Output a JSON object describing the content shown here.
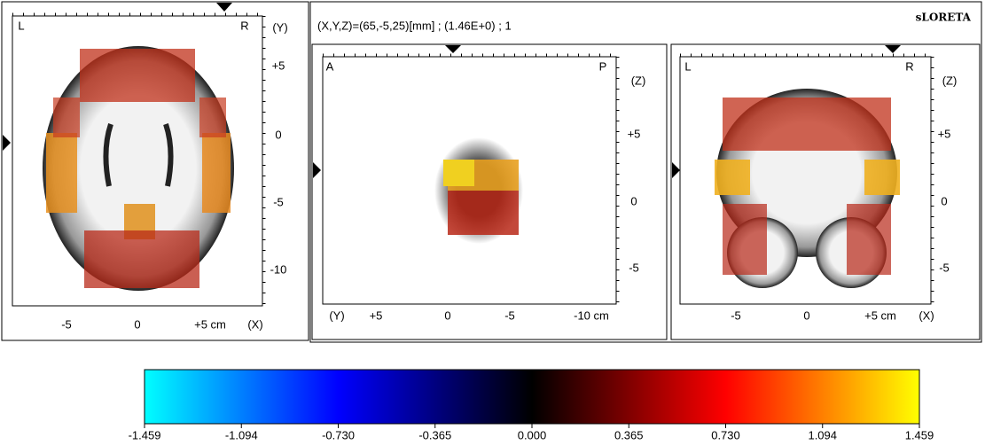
{
  "header": {
    "coords": "(X,Y,Z)=(65,-5,25)[mm]  ;  (1.46E+0)  ;  1",
    "title": "sLORETA"
  },
  "axial": {
    "left": "L",
    "right": "R",
    "axis_v": "(Y)",
    "vticks": [
      "+5",
      "0",
      "-5",
      "-10"
    ],
    "hticks": [
      "-5",
      "0",
      "+5 cm"
    ],
    "axis_h": "(X)"
  },
  "sagittal": {
    "left": "A",
    "right": "P",
    "axis_v": "(Z)",
    "vticks": [
      "+5",
      "0",
      "-5"
    ],
    "axis_h": "(Y)",
    "hticks": [
      "+5",
      "0",
      "-5",
      "-10 cm"
    ]
  },
  "coronal": {
    "left": "L",
    "right": "R",
    "axis_v": "(Z)",
    "vticks": [
      "+5",
      "0",
      "-5"
    ],
    "hticks": [
      "-5",
      "0",
      "+5 cm"
    ],
    "axis_h": "(X)"
  },
  "colorbar": {
    "ticks": [
      "-1.459",
      "-1.094",
      "-0.730",
      "-0.365",
      "0.000",
      "0.365",
      "0.730",
      "1.094",
      "1.459"
    ]
  }
}
